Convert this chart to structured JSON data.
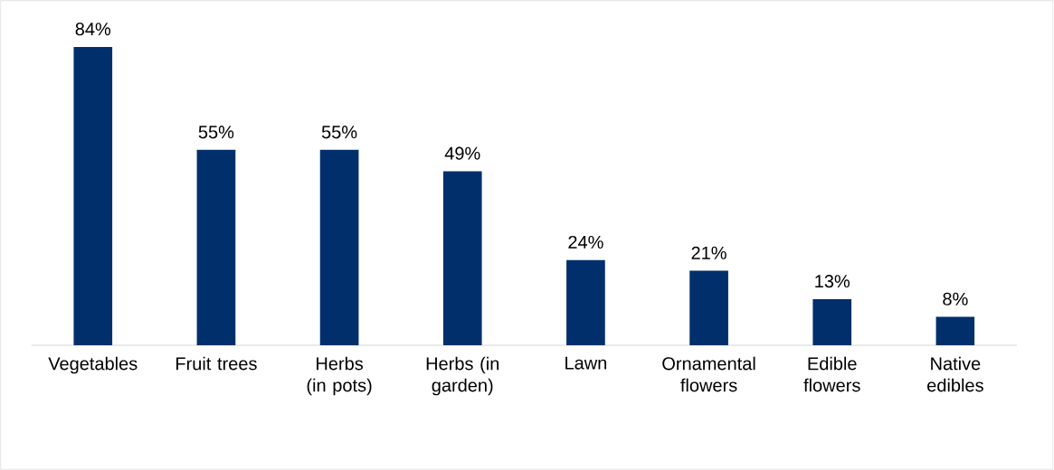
{
  "chart_data": {
    "type": "bar",
    "categories": [
      "Vegetables",
      "Fruit trees",
      "Herbs (in pots)",
      "Herbs (in garden)",
      "Lawn",
      "Ornamental flowers",
      "Edible flowers",
      "Native edibles"
    ],
    "values": [
      84,
      55,
      55,
      49,
      24,
      21,
      13,
      8
    ],
    "value_labels": [
      "84%",
      "55%",
      "55%",
      "49%",
      "24%",
      "21%",
      "13%",
      "8%"
    ],
    "color": "#002f6c"
  }
}
